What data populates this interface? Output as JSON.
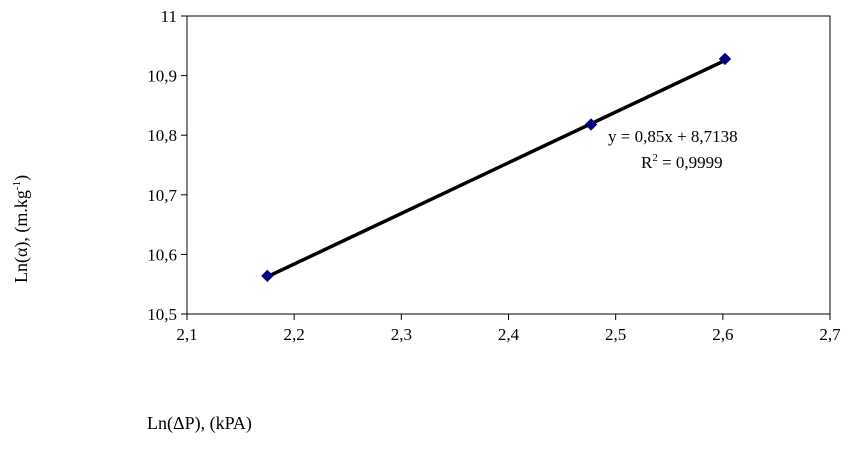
{
  "chart_data": {
    "type": "scatter",
    "x": [
      2.175,
      2.477,
      2.602
    ],
    "y": [
      10.564,
      10.818,
      10.928
    ],
    "series": [
      {
        "values": [
          10.564,
          10.818,
          10.928
        ],
        "marker": "diamond",
        "color": "#000080"
      }
    ],
    "trendline": {
      "slope": 0.85,
      "intercept": 8.7138,
      "from": 2.175,
      "to": 2.602,
      "color": "#000000"
    },
    "xlim": [
      2.1,
      2.7
    ],
    "ylim": [
      10.5,
      11
    ],
    "xticks": [
      "2,1",
      "2,2",
      "2,3",
      "2,4",
      "2,5",
      "2,6",
      "2,7"
    ],
    "yticks": [
      "10,5",
      "10,6",
      "10,7",
      "10,8",
      "10,9",
      "11"
    ],
    "xlabel": "Ln(ΔP), (kPA)",
    "ylabel": {
      "main": "Ln(α), (m.kg",
      "sup": "-1",
      "close": ")"
    },
    "annotations": {
      "equation": "y = 0,85x + 8,7138",
      "r2_prefix": "R",
      "r2_sup": "2",
      "r2_value": " = 0,9999"
    },
    "grid": false,
    "legend": "none"
  }
}
